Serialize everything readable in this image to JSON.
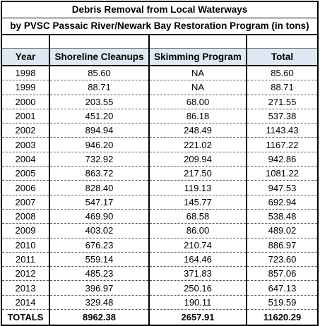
{
  "title": "Debris Removal from Local Waterways",
  "subtitle": "by PVSC Passaic River/Newark Bay Restoration Program (in tons)",
  "columns": [
    "Year",
    "Shoreline Cleanups",
    "Skimming Program",
    "Total"
  ],
  "rows": [
    [
      "1998",
      "85.60",
      "NA",
      "85.60"
    ],
    [
      "1999",
      "88.71",
      "NA",
      "88.71"
    ],
    [
      "2000",
      "203.55",
      "68.00",
      "271.55"
    ],
    [
      "2001",
      "451.20",
      "86.18",
      "537.38"
    ],
    [
      "2002",
      "894.94",
      "248.49",
      "1143.43"
    ],
    [
      "2003",
      "946.20",
      "221.02",
      "1167.22"
    ],
    [
      "2004",
      "732.92",
      "209.94",
      "942.86"
    ],
    [
      "2005",
      "863.72",
      "217.50",
      "1081.22"
    ],
    [
      "2006",
      "828.40",
      "119.13",
      "947.53"
    ],
    [
      "2007",
      "547.17",
      "145.77",
      "692.94"
    ],
    [
      "2008",
      "469.90",
      "68.58",
      "538.48"
    ],
    [
      "2009",
      "403.02",
      "86.00",
      "489.02"
    ],
    [
      "2010",
      "676.23",
      "210.74",
      "886.97"
    ],
    [
      "2011",
      "559.14",
      "164.46",
      "723.60"
    ],
    [
      "2012",
      "485.23",
      "371.83",
      "857.06"
    ],
    [
      "2013",
      "396.97",
      "250.16",
      "647.13"
    ],
    [
      "2014",
      "329.48",
      "190.11",
      "519.59"
    ]
  ],
  "totals": [
    "TOTALS",
    "8962.38",
    "2657.91",
    "11620.29"
  ],
  "colors": {
    "header_fill": "#dfe8f3",
    "border": "#000000"
  }
}
